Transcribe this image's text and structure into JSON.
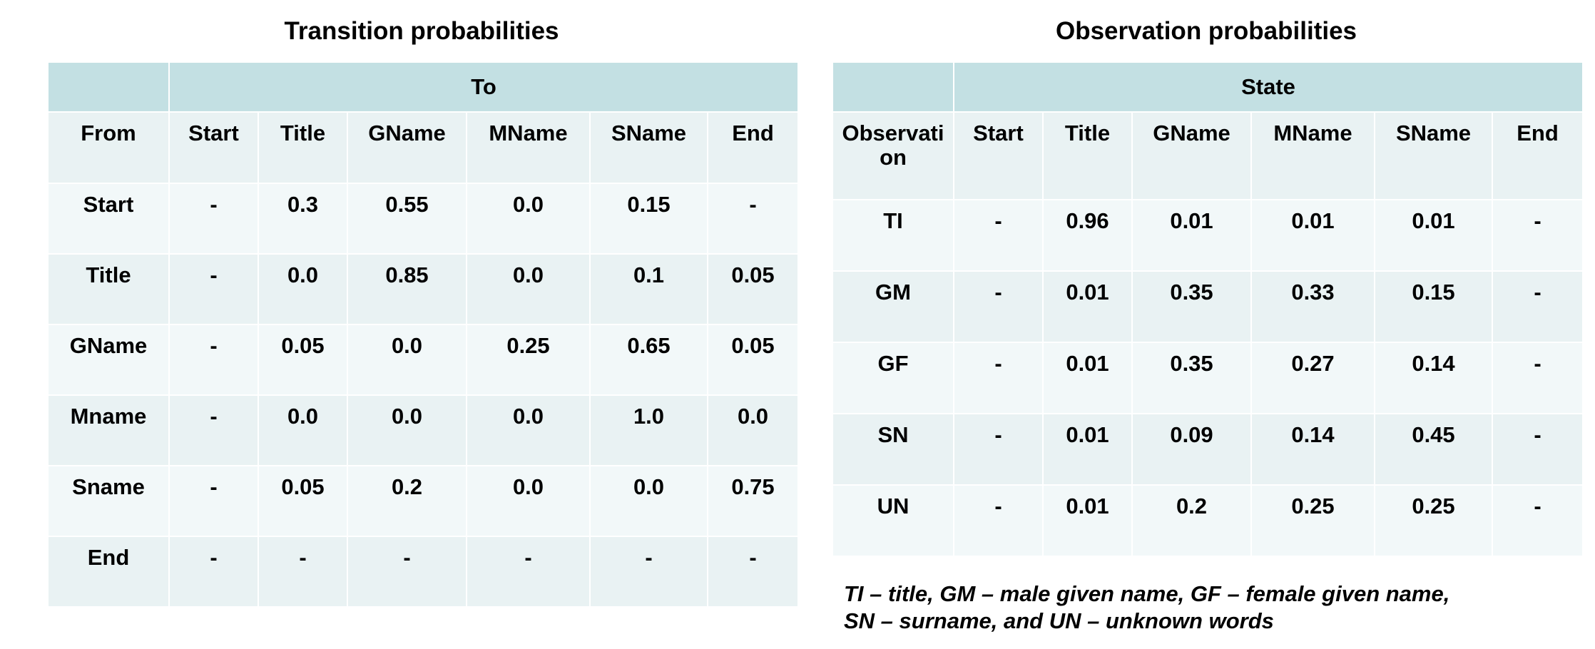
{
  "transition": {
    "title": "Transition probabilities",
    "group_header": "To",
    "columns": [
      "From",
      "Start",
      "Title",
      "GName",
      "MName",
      "SName",
      "End"
    ],
    "rows": [
      [
        "Start",
        "-",
        "0.3",
        "0.55",
        "0.0",
        "0.15",
        "-"
      ],
      [
        "Title",
        "-",
        "0.0",
        "0.85",
        "0.0",
        "0.1",
        "0.05"
      ],
      [
        "GName",
        "-",
        "0.05",
        "0.0",
        "0.25",
        "0.65",
        "0.05"
      ],
      [
        "Mname",
        "-",
        "0.0",
        "0.0",
        "0.0",
        "1.0",
        "0.0"
      ],
      [
        "Sname",
        "-",
        "0.05",
        "0.2",
        "0.0",
        "0.0",
        "0.75"
      ],
      [
        "End",
        "-",
        "-",
        "-",
        "-",
        "-",
        "-"
      ]
    ]
  },
  "observation": {
    "title": "Observation probabilities",
    "group_header": "State",
    "columns": [
      "Observati\non",
      "Start",
      "Title",
      "GName",
      "MName",
      "SName",
      "End"
    ],
    "rows": [
      [
        "TI",
        "-",
        "0.96",
        "0.01",
        "0.01",
        "0.01",
        "-"
      ],
      [
        "GM",
        "-",
        "0.01",
        "0.35",
        "0.33",
        "0.15",
        "-"
      ],
      [
        "GF",
        "-",
        "0.01",
        "0.35",
        "0.27",
        "0.14",
        "-"
      ],
      [
        "SN",
        "-",
        "0.01",
        "0.09",
        "0.14",
        "0.45",
        "-"
      ],
      [
        "UN",
        "-",
        "0.01",
        "0.2",
        "0.25",
        "0.25",
        "-"
      ]
    ]
  },
  "legend": {
    "line1": "TI – title, GM – male given name, GF – female given name,",
    "line2": "SN – surname, and UN – unknown words"
  }
}
